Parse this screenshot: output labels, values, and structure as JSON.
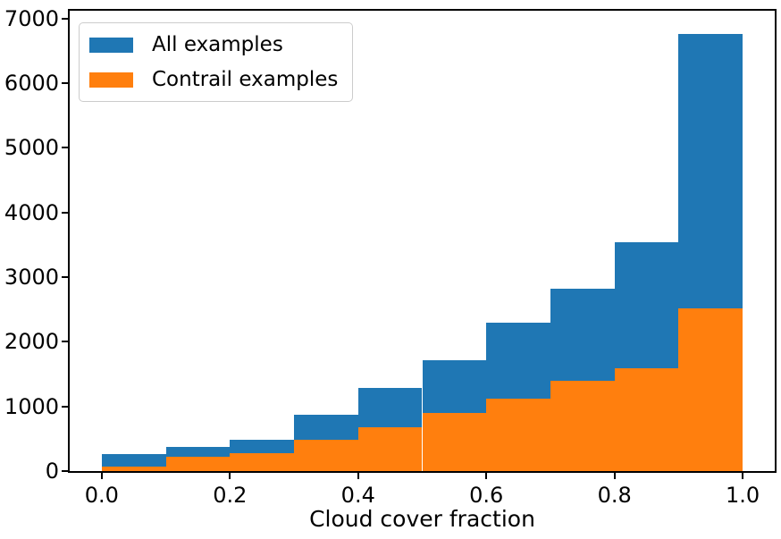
{
  "figure": {
    "background": "#ffffff",
    "text_color": "#000000"
  },
  "chart_data": {
    "type": "bar",
    "subtype": "histogram-overlay",
    "title": "",
    "xlabel": "Cloud cover fraction",
    "ylabel": "",
    "grid": false,
    "bin_edges": [
      0.0,
      0.1,
      0.2,
      0.3,
      0.4,
      0.5,
      0.6,
      0.7,
      0.8,
      0.9,
      1.0
    ],
    "series": [
      {
        "name": "All examples",
        "color": "#1f77b4",
        "values": [
          260,
          370,
          490,
          865,
          1280,
          1715,
          2290,
          2820,
          3535,
          6760
        ]
      },
      {
        "name": "Contrail examples",
        "color": "#ff7f0e",
        "values": [
          75,
          215,
          270,
          480,
          675,
          895,
          1125,
          1390,
          1590,
          2520
        ]
      }
    ],
    "xlim": [
      -0.05,
      1.05
    ],
    "ylim": [
      0,
      7120
    ],
    "xticks": {
      "values": [
        0.0,
        0.2,
        0.4,
        0.6,
        0.8,
        1.0
      ],
      "labels": [
        "0.0",
        "0.2",
        "0.4",
        "0.6",
        "0.8",
        "1.0"
      ]
    },
    "yticks": {
      "values": [
        0,
        1000,
        2000,
        3000,
        4000,
        5000,
        6000,
        7000
      ],
      "labels": [
        "0",
        "1000",
        "2000",
        "3000",
        "4000",
        "5000",
        "6000",
        "7000"
      ]
    },
    "legend": {
      "position": "upper left",
      "entries": [
        "All examples",
        "Contrail examples"
      ]
    }
  }
}
